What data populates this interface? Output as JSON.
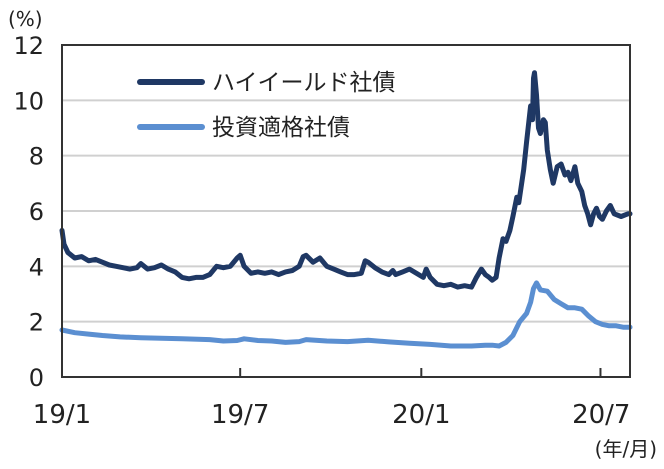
{
  "chart_data": {
    "type": "line",
    "y_unit_label": "(%)",
    "x_unit_label": "(年/月)",
    "ylim": [
      0,
      12
    ],
    "y_ticks": [
      0,
      2,
      4,
      6,
      8,
      10,
      12
    ],
    "y_tick_labels": [
      "0",
      "2",
      "4",
      "6",
      "8",
      "10",
      "12"
    ],
    "x_ticks": [
      {
        "date": "2019-01-01",
        "label": "19/1"
      },
      {
        "date": "2019-07-01",
        "label": "19/7"
      },
      {
        "date": "2020-01-01",
        "label": "20/1"
      },
      {
        "date": "2020-07-01",
        "label": "20/7"
      }
    ],
    "xlim": [
      "2019-01-01",
      "2020-07-31"
    ],
    "grid": "horizontal",
    "legend_position": "top-left",
    "series": [
      {
        "name": "ハイイールド社債",
        "color": "#1f3864",
        "points": [
          [
            "2019-01-01",
            5.3
          ],
          [
            "2019-01-03",
            4.8
          ],
          [
            "2019-01-07",
            4.5
          ],
          [
            "2019-01-14",
            4.3
          ],
          [
            "2019-01-21",
            4.35
          ],
          [
            "2019-01-28",
            4.2
          ],
          [
            "2019-02-04",
            4.25
          ],
          [
            "2019-02-11",
            4.15
          ],
          [
            "2019-02-18",
            4.05
          ],
          [
            "2019-02-25",
            4.0
          ],
          [
            "2019-03-04",
            3.95
          ],
          [
            "2019-03-11",
            3.9
          ],
          [
            "2019-03-18",
            3.95
          ],
          [
            "2019-03-22",
            4.1
          ],
          [
            "2019-03-29",
            3.9
          ],
          [
            "2019-04-05",
            3.95
          ],
          [
            "2019-04-12",
            4.05
          ],
          [
            "2019-04-19",
            3.9
          ],
          [
            "2019-04-26",
            3.8
          ],
          [
            "2019-05-03",
            3.6
          ],
          [
            "2019-05-10",
            3.55
          ],
          [
            "2019-05-17",
            3.6
          ],
          [
            "2019-05-24",
            3.6
          ],
          [
            "2019-05-31",
            3.7
          ],
          [
            "2019-06-07",
            4.0
          ],
          [
            "2019-06-14",
            3.95
          ],
          [
            "2019-06-21",
            4.0
          ],
          [
            "2019-06-28",
            4.3
          ],
          [
            "2019-07-01",
            4.4
          ],
          [
            "2019-07-05",
            4.0
          ],
          [
            "2019-07-12",
            3.75
          ],
          [
            "2019-07-19",
            3.8
          ],
          [
            "2019-07-26",
            3.75
          ],
          [
            "2019-08-02",
            3.8
          ],
          [
            "2019-08-09",
            3.7
          ],
          [
            "2019-08-16",
            3.8
          ],
          [
            "2019-08-23",
            3.85
          ],
          [
            "2019-08-30",
            4.0
          ],
          [
            "2019-09-03",
            4.35
          ],
          [
            "2019-09-06",
            4.4
          ],
          [
            "2019-09-13",
            4.15
          ],
          [
            "2019-09-20",
            4.3
          ],
          [
            "2019-09-27",
            4.0
          ],
          [
            "2019-10-04",
            3.9
          ],
          [
            "2019-10-11",
            3.8
          ],
          [
            "2019-10-18",
            3.7
          ],
          [
            "2019-10-25",
            3.7
          ],
          [
            "2019-11-01",
            3.75
          ],
          [
            "2019-11-05",
            4.2
          ],
          [
            "2019-11-08",
            4.15
          ],
          [
            "2019-11-15",
            3.95
          ],
          [
            "2019-11-22",
            3.8
          ],
          [
            "2019-11-29",
            3.7
          ],
          [
            "2019-12-03",
            3.85
          ],
          [
            "2019-12-06",
            3.7
          ],
          [
            "2019-12-13",
            3.8
          ],
          [
            "2019-12-20",
            3.9
          ],
          [
            "2019-12-27",
            3.75
          ],
          [
            "2020-01-03",
            3.6
          ],
          [
            "2020-01-06",
            3.9
          ],
          [
            "2020-01-10",
            3.6
          ],
          [
            "2020-01-17",
            3.35
          ],
          [
            "2020-01-24",
            3.3
          ],
          [
            "2020-01-31",
            3.35
          ],
          [
            "2020-02-07",
            3.25
          ],
          [
            "2020-02-14",
            3.3
          ],
          [
            "2020-02-21",
            3.25
          ],
          [
            "2020-02-26",
            3.6
          ],
          [
            "2020-03-02",
            3.9
          ],
          [
            "2020-03-06",
            3.7
          ],
          [
            "2020-03-10",
            3.6
          ],
          [
            "2020-03-13",
            3.5
          ],
          [
            "2020-03-17",
            3.6
          ],
          [
            "2020-03-20",
            4.3
          ],
          [
            "2020-03-24",
            5.0
          ],
          [
            "2020-03-27",
            4.9
          ],
          [
            "2020-03-31",
            5.3
          ],
          [
            "2020-04-03",
            5.8
          ],
          [
            "2020-04-07",
            6.5
          ],
          [
            "2020-04-09",
            6.3
          ],
          [
            "2020-04-14",
            7.5
          ],
          [
            "2020-04-17",
            8.5
          ],
          [
            "2020-04-21",
            9.8
          ],
          [
            "2020-04-23",
            9.3
          ],
          [
            "2020-04-24",
            10.8
          ],
          [
            "2020-04-25",
            11.0
          ],
          [
            "2020-04-27",
            10.2
          ],
          [
            "2020-04-29",
            9.0
          ],
          [
            "2020-05-01",
            8.8
          ],
          [
            "2020-05-04",
            9.3
          ],
          [
            "2020-05-06",
            9.2
          ],
          [
            "2020-05-08",
            8.2
          ],
          [
            "2020-05-11",
            7.5
          ],
          [
            "2020-05-14",
            7.0
          ],
          [
            "2020-05-18",
            7.6
          ],
          [
            "2020-05-22",
            7.7
          ],
          [
            "2020-05-26",
            7.3
          ],
          [
            "2020-05-29",
            7.4
          ],
          [
            "2020-06-01",
            7.1
          ],
          [
            "2020-06-05",
            7.6
          ],
          [
            "2020-06-08",
            7.0
          ],
          [
            "2020-06-12",
            6.7
          ],
          [
            "2020-06-15",
            6.2
          ],
          [
            "2020-06-18",
            5.9
          ],
          [
            "2020-06-21",
            5.5
          ],
          [
            "2020-06-24",
            5.9
          ],
          [
            "2020-06-27",
            6.1
          ],
          [
            "2020-06-30",
            5.8
          ],
          [
            "2020-07-03",
            5.7
          ],
          [
            "2020-07-07",
            6.0
          ],
          [
            "2020-07-11",
            6.2
          ],
          [
            "2020-07-15",
            5.9
          ],
          [
            "2020-07-22",
            5.8
          ],
          [
            "2020-07-29",
            5.9
          ],
          [
            "2020-07-31",
            5.9
          ]
        ]
      },
      {
        "name": "投資適格社債",
        "color": "#5b8fd1",
        "points": [
          [
            "2019-01-01",
            1.7
          ],
          [
            "2019-01-14",
            1.6
          ],
          [
            "2019-01-28",
            1.55
          ],
          [
            "2019-02-11",
            1.5
          ],
          [
            "2019-03-01",
            1.45
          ],
          [
            "2019-03-22",
            1.42
          ],
          [
            "2019-04-12",
            1.4
          ],
          [
            "2019-05-03",
            1.38
          ],
          [
            "2019-05-31",
            1.35
          ],
          [
            "2019-06-14",
            1.3
          ],
          [
            "2019-06-28",
            1.32
          ],
          [
            "2019-07-05",
            1.38
          ],
          [
            "2019-07-19",
            1.32
          ],
          [
            "2019-08-02",
            1.3
          ],
          [
            "2019-08-16",
            1.25
          ],
          [
            "2019-08-30",
            1.28
          ],
          [
            "2019-09-06",
            1.35
          ],
          [
            "2019-09-27",
            1.3
          ],
          [
            "2019-10-18",
            1.28
          ],
          [
            "2019-11-08",
            1.33
          ],
          [
            "2019-11-29",
            1.27
          ],
          [
            "2019-12-20",
            1.22
          ],
          [
            "2020-01-10",
            1.18
          ],
          [
            "2020-01-31",
            1.12
          ],
          [
            "2020-02-21",
            1.12
          ],
          [
            "2020-03-06",
            1.15
          ],
          [
            "2020-03-13",
            1.15
          ],
          [
            "2020-03-20",
            1.12
          ],
          [
            "2020-03-27",
            1.25
          ],
          [
            "2020-04-03",
            1.5
          ],
          [
            "2020-04-10",
            2.0
          ],
          [
            "2020-04-17",
            2.3
          ],
          [
            "2020-04-21",
            2.7
          ],
          [
            "2020-04-24",
            3.2
          ],
          [
            "2020-04-27",
            3.4
          ],
          [
            "2020-05-01",
            3.15
          ],
          [
            "2020-05-08",
            3.1
          ],
          [
            "2020-05-15",
            2.8
          ],
          [
            "2020-05-22",
            2.65
          ],
          [
            "2020-05-29",
            2.5
          ],
          [
            "2020-06-05",
            2.5
          ],
          [
            "2020-06-12",
            2.45
          ],
          [
            "2020-06-19",
            2.2
          ],
          [
            "2020-06-26",
            2.0
          ],
          [
            "2020-07-03",
            1.9
          ],
          [
            "2020-07-10",
            1.85
          ],
          [
            "2020-07-17",
            1.85
          ],
          [
            "2020-07-24",
            1.8
          ],
          [
            "2020-07-31",
            1.8
          ]
        ]
      }
    ]
  }
}
